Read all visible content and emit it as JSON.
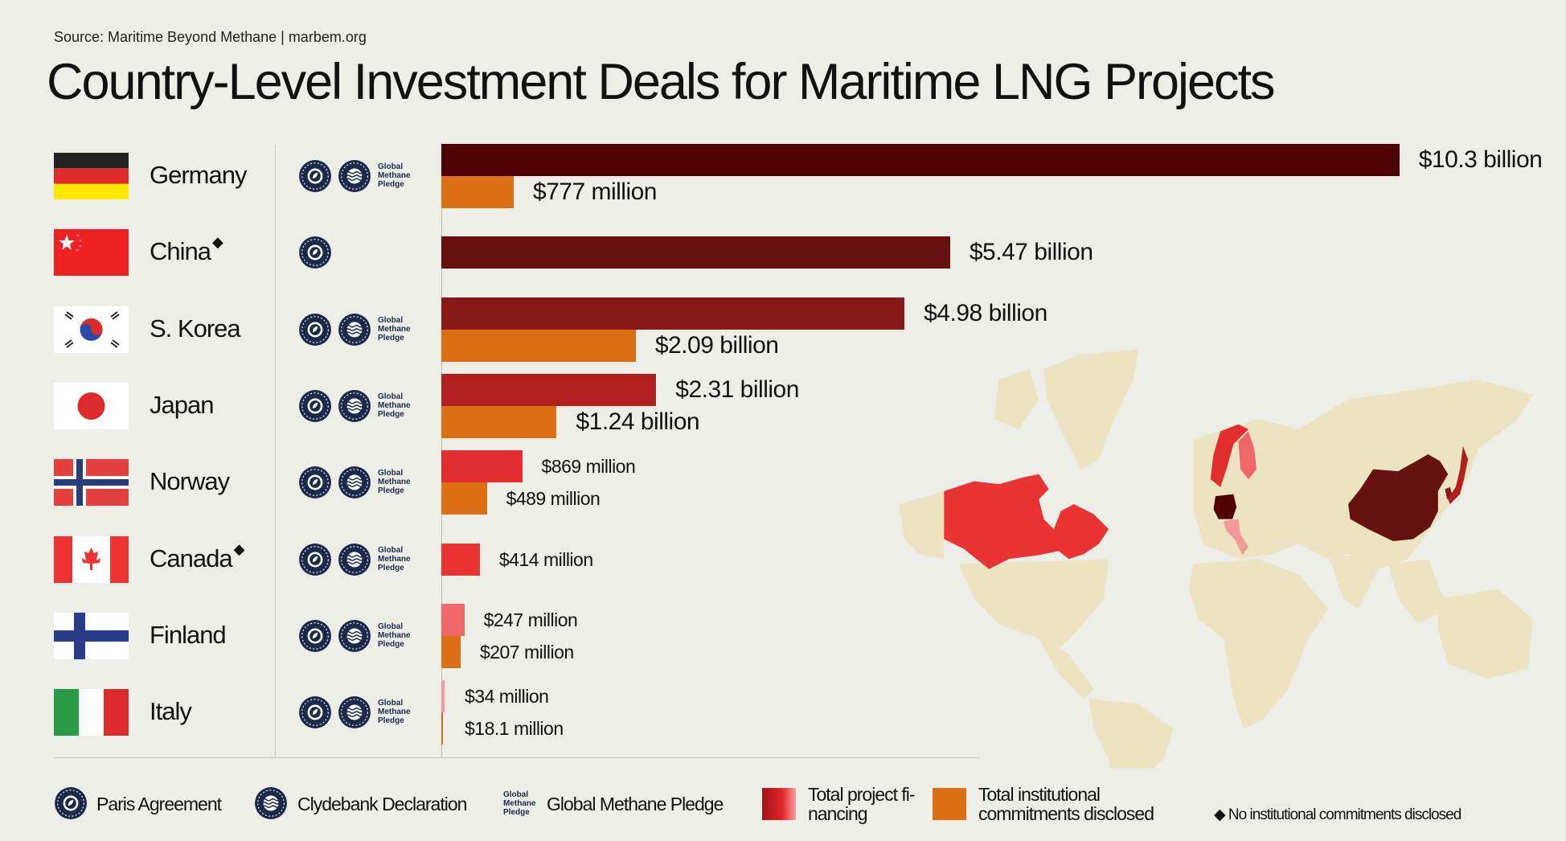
{
  "source": "Source: Maritime Beyond Methane |  marbem.org",
  "title": "Country-Level Investment Deals for Maritime LNG Projects",
  "colors": {
    "background": "#edeee7",
    "institutional": "#dc6e14",
    "map_land": "#ebe3c2",
    "icon_navy": "#1b2a4a"
  },
  "chart_data": {
    "type": "bar",
    "orientation": "horizontal",
    "unit": "USD billion",
    "categories": [
      "Germany",
      "China",
      "S. Korea",
      "Japan",
      "Norway",
      "Canada",
      "Finland",
      "Italy"
    ],
    "series": [
      {
        "name": "Total project financing",
        "values": [
          10.3,
          5.47,
          4.98,
          2.31,
          0.869,
          0.414,
          0.247,
          0.034
        ],
        "labels": [
          "$10.3 billion",
          "$5.47 billion",
          "$4.98 billion",
          "$2.31 billion",
          "$869 million",
          "$414 million",
          "$247 million",
          "$34 million"
        ],
        "colors": [
          "#4f0000",
          "#671010",
          "#891818",
          "#b21f1f",
          "#e12d2d",
          "#ea3434",
          "#ef6767",
          "#f29a9a"
        ]
      },
      {
        "name": "Total institutional commitments disclosed",
        "values": [
          0.777,
          null,
          2.09,
          1.24,
          0.489,
          null,
          0.207,
          0.0181
        ],
        "labels": [
          "$777 million",
          null,
          "$2.09 billion",
          "$1.24 billion",
          "$489 million",
          null,
          "$207 million",
          "$18.1 million"
        ],
        "color": "#dc6e14"
      }
    ],
    "grid": false
  },
  "countries": [
    {
      "name": "Germany",
      "flag": "de",
      "no_institutional": false,
      "pledges": [
        "paris",
        "clydebank",
        "gmp"
      ]
    },
    {
      "name": "China",
      "flag": "cn",
      "no_institutional": true,
      "pledges": [
        "paris"
      ]
    },
    {
      "name": "S. Korea",
      "flag": "kr",
      "no_institutional": false,
      "pledges": [
        "paris",
        "clydebank",
        "gmp"
      ]
    },
    {
      "name": "Japan",
      "flag": "jp",
      "no_institutional": false,
      "pledges": [
        "paris",
        "clydebank",
        "gmp"
      ]
    },
    {
      "name": "Norway",
      "flag": "no",
      "no_institutional": false,
      "pledges": [
        "paris",
        "clydebank",
        "gmp"
      ]
    },
    {
      "name": "Canada",
      "flag": "ca",
      "no_institutional": true,
      "pledges": [
        "paris",
        "clydebank",
        "gmp"
      ]
    },
    {
      "name": "Finland",
      "flag": "fi",
      "no_institutional": false,
      "pledges": [
        "paris",
        "clydebank",
        "gmp"
      ]
    },
    {
      "name": "Italy",
      "flag": "it",
      "no_institutional": false,
      "pledges": [
        "paris",
        "clydebank",
        "gmp"
      ]
    }
  ],
  "gmp_logo_text": [
    "Global",
    "Methane",
    "Pledge"
  ],
  "diamond_symbol": "◆",
  "legend": {
    "paris": "Paris Agreement",
    "clydebank": "Clydebank Declaration",
    "gmp": "Global Methane Pledge",
    "financing_line1": "Total project fi-",
    "financing_line2": "nancing",
    "institutional_line1": "Total institutional",
    "institutional_line2": "commitments disclosed",
    "no_commitments": "No institutional commitments disclosed"
  }
}
